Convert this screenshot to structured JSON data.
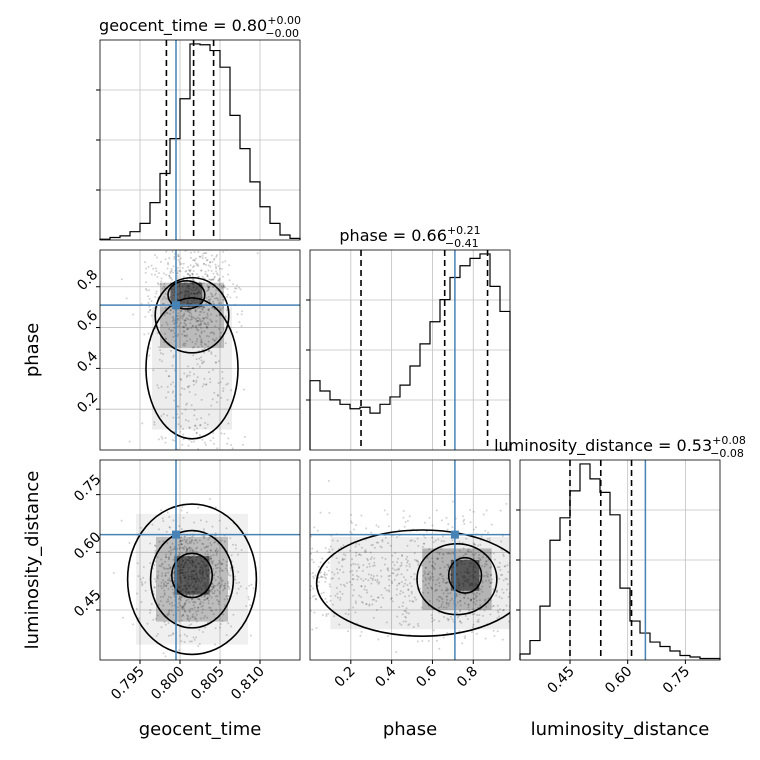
{
  "chart_data": {
    "type": "corner",
    "parameters": [
      "geocent_time",
      "phase",
      "luminosity_distance"
    ],
    "truths": [
      0.7995,
      0.71,
      0.646
    ],
    "colors": {
      "truth": "#4682b4",
      "hist": "#000000",
      "grid": "#c0c0c0",
      "density": "#000000"
    },
    "ranges": [
      [
        0.79,
        0.815
      ],
      [
        0.0,
        0.98
      ],
      [
        0.32,
        0.84
      ]
    ],
    "ticks": {
      "geocent_time": [
        "0.795",
        "0.800",
        "0.805",
        "0.810"
      ],
      "phase": [
        "0.2",
        "0.4",
        "0.6",
        "0.8"
      ],
      "luminosity_distance": [
        "0.45",
        "0.60",
        "0.75"
      ]
    },
    "tick_values": {
      "geocent_time": [
        0.795,
        0.8,
        0.805,
        0.81
      ],
      "phase": [
        0.2,
        0.4,
        0.6,
        0.8
      ],
      "luminosity_distance": [
        0.45,
        0.6,
        0.75
      ]
    },
    "titles": [
      {
        "label": "geocent_time = 0.80",
        "plus": "+0.00",
        "minus": "−0.00"
      },
      {
        "label": "phase = 0.66",
        "plus": "+0.21",
        "minus": "−0.41"
      },
      {
        "label": "luminosity_distance = 0.53",
        "plus": "+0.08",
        "minus": "−0.08"
      }
    ],
    "quantiles": [
      [
        0.7983,
        0.8017,
        0.8042
      ],
      [
        0.25,
        0.66,
        0.87
      ],
      [
        0.45,
        0.53,
        0.61
      ]
    ],
    "histograms": [
      {
        "parameter": "geocent_time",
        "values": [
          1,
          3,
          5,
          10,
          20,
          45,
          80,
          122,
          170,
          236,
          235,
          228,
          208,
          150,
          110,
          70,
          40,
          20,
          6,
          2
        ]
      },
      {
        "parameter": "phase",
        "values": [
          47,
          40,
          34,
          31,
          28,
          29,
          25,
          31,
          36,
          44,
          57,
          72,
          87,
          102,
          117,
          125,
          130,
          133,
          111,
          94
        ]
      },
      {
        "parameter": "luminosity_distance",
        "values": [
          4,
          13,
          36,
          80,
          95,
          113,
          131,
          121,
          112,
          97,
          48,
          26,
          18,
          12,
          9,
          6,
          3,
          2,
          1,
          1
        ]
      }
    ]
  }
}
